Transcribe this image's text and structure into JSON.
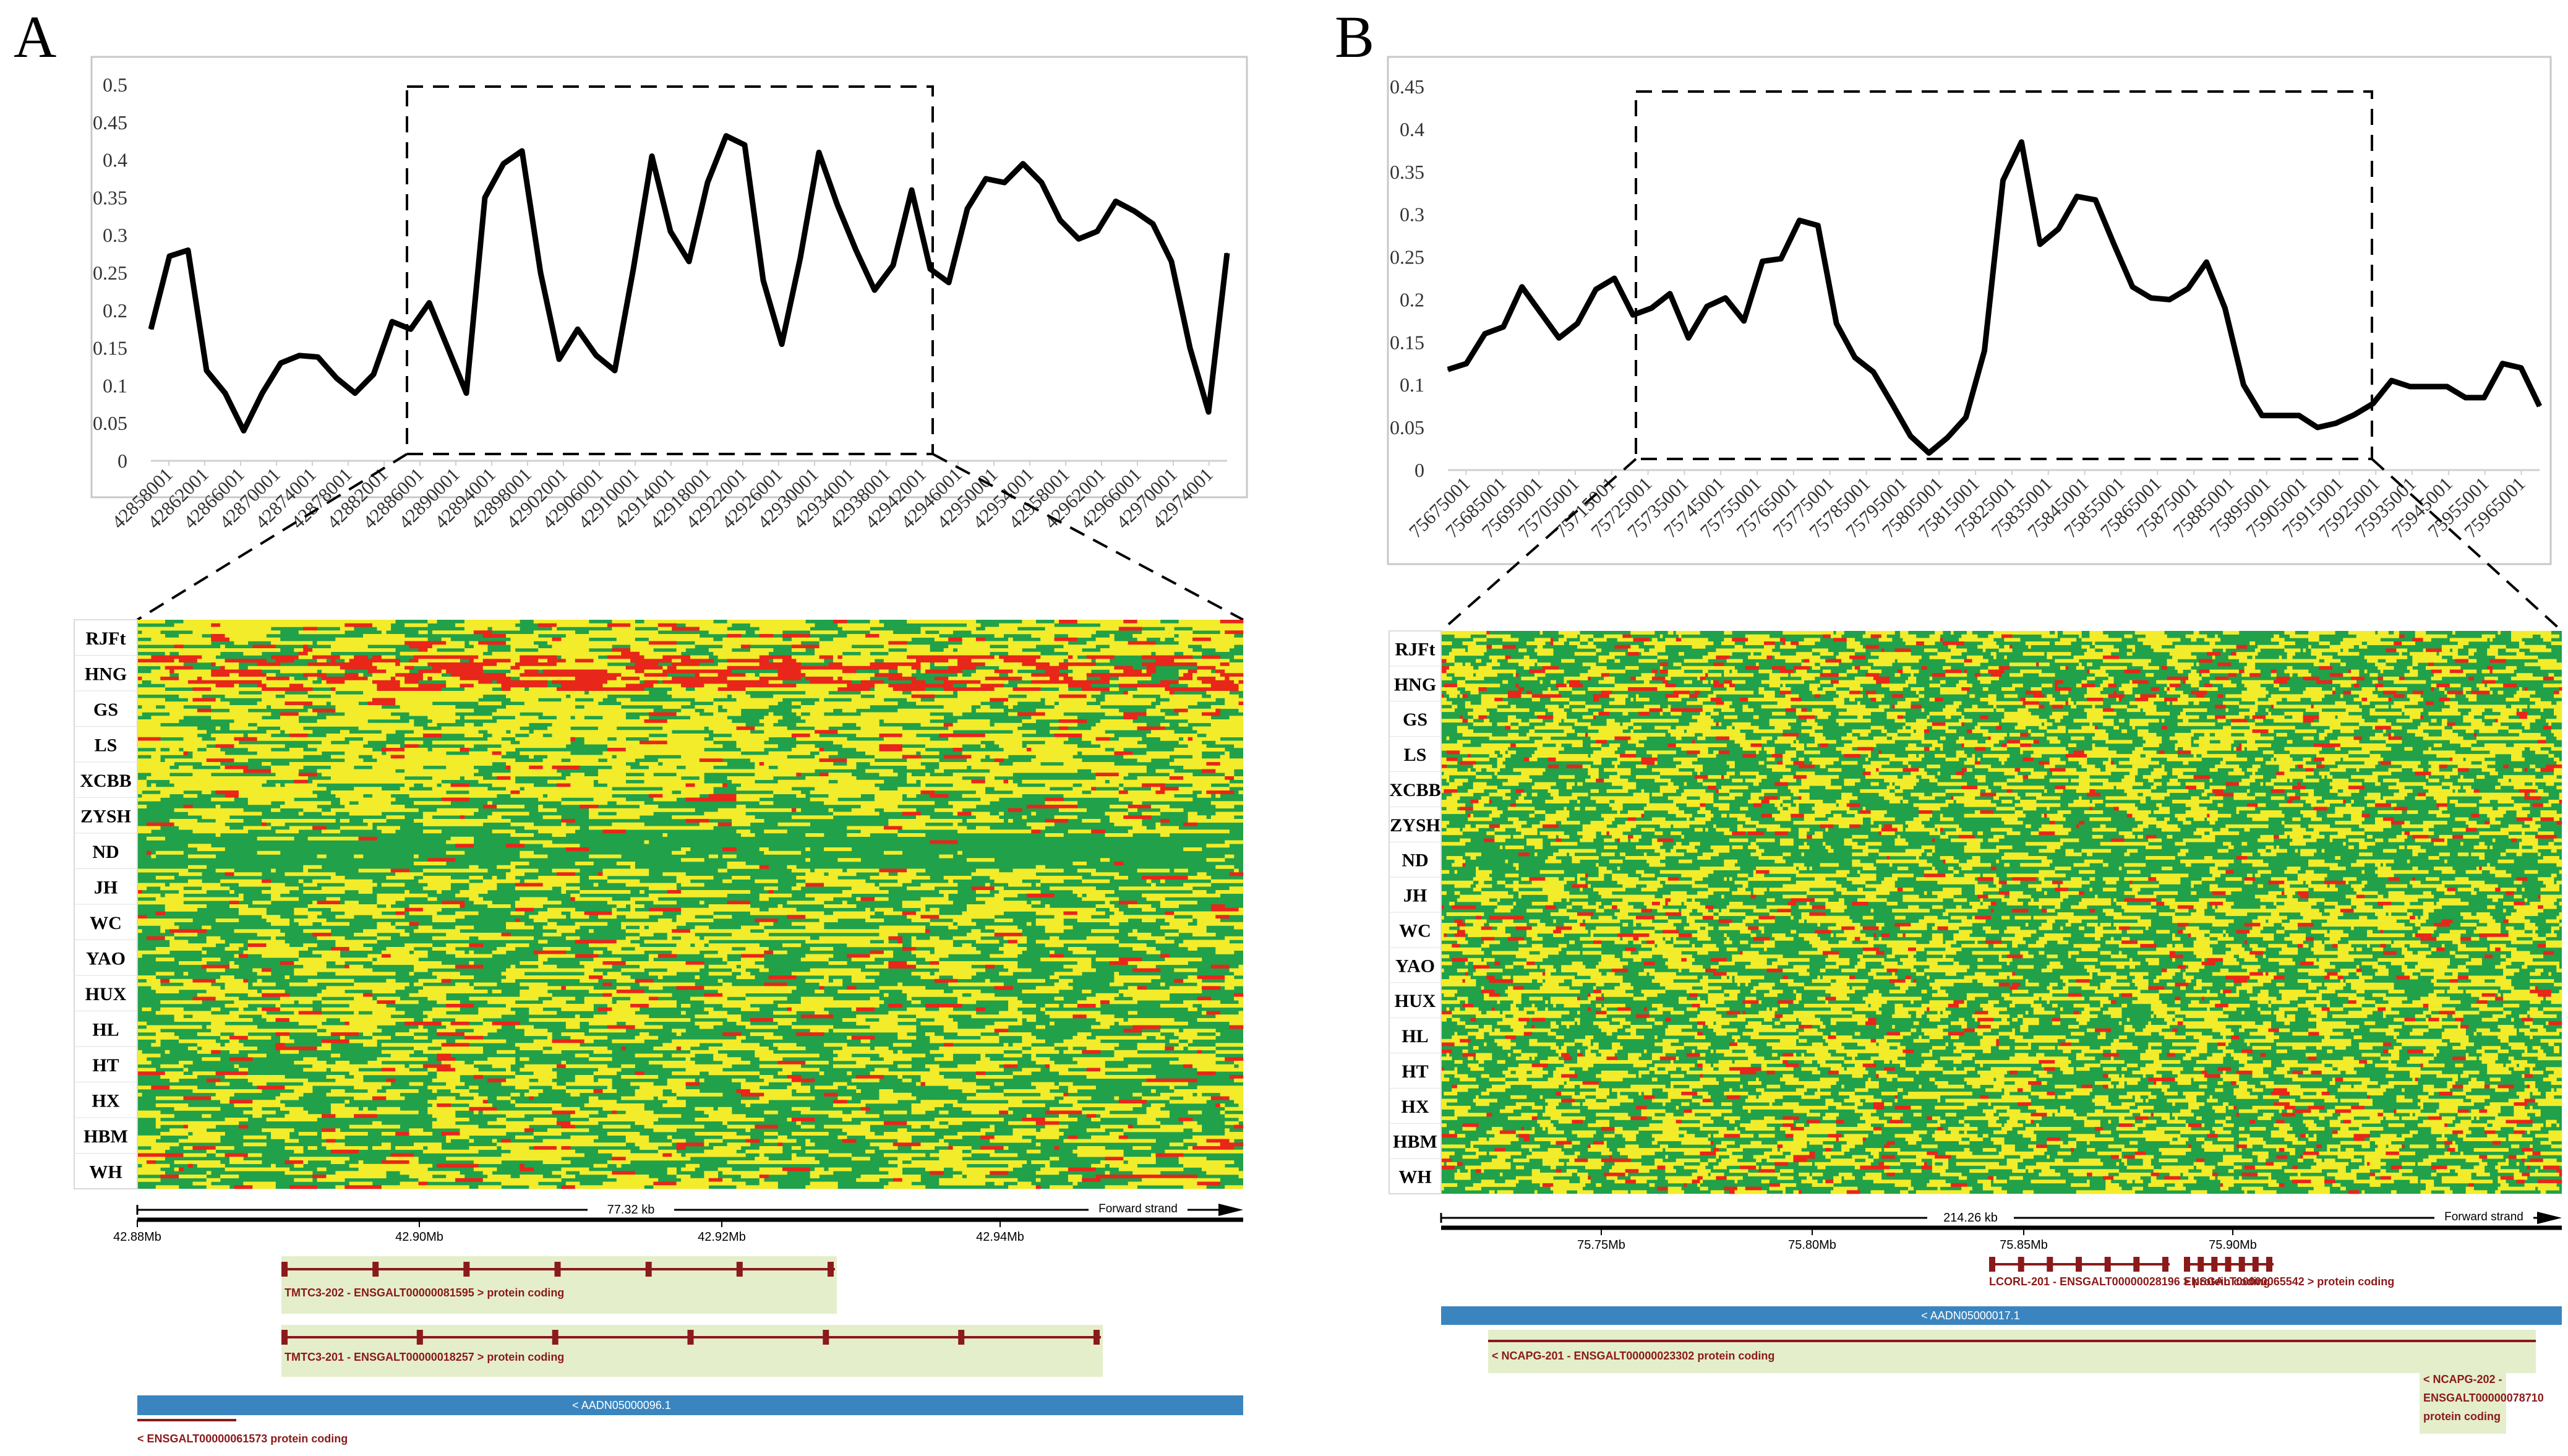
{
  "panels": [
    {
      "id": "A",
      "letter": "A",
      "chart_data": {
        "type": "line",
        "title": "",
        "xlabel": "",
        "ylabel": "",
        "ylim": [
          0,
          0.5
        ],
        "yticks": [
          "0",
          "0.05",
          "0.1",
          "0.15",
          "0.2",
          "0.25",
          "0.3",
          "0.35",
          "0.4",
          "0.45",
          "0.5"
        ],
        "xticks": [
          "42858001",
          "42862001",
          "42866001",
          "42870001",
          "42874001",
          "42878001",
          "42882001",
          "42886001",
          "42890001",
          "42894001",
          "42898001",
          "42902001",
          "42906001",
          "42910001",
          "42914001",
          "42918001",
          "42922001",
          "42926001",
          "42930001",
          "42934001",
          "42938001",
          "42942001",
          "42946001",
          "42950001",
          "42954001",
          "42958001",
          "42962001",
          "42966001",
          "42970001",
          "42974001"
        ],
        "series": [
          {
            "name": "signal",
            "values": [
              0.175,
              0.272,
              0.28,
              0.12,
              0.09,
              0.04,
              0.09,
              0.13,
              0.14,
              0.138,
              0.11,
              0.09,
              0.115,
              0.185,
              0.175,
              0.21,
              0.15,
              0.09,
              0.35,
              0.395,
              0.412,
              0.25,
              0.135,
              0.175,
              0.14,
              0.12,
              0.255,
              0.405,
              0.305,
              0.265,
              0.37,
              0.432,
              0.42,
              0.24,
              0.155,
              0.27,
              0.41,
              0.34,
              0.28,
              0.227,
              0.26,
              0.36,
              0.255,
              0.237,
              0.335,
              0.375,
              0.37,
              0.395,
              0.37,
              0.32,
              0.295,
              0.305,
              0.345,
              0.332,
              0.315,
              0.265,
              0.15,
              0.065,
              0.276
            ]
          }
        ],
        "highlight_range": [
          "42886001",
          "42946001"
        ]
      },
      "heatmap": {
        "populations": [
          "RJFt",
          "HNG",
          "GS",
          "LS",
          "XCBB",
          "ZYSH",
          "ND",
          "JH",
          "WC",
          "YAO",
          "HUX",
          "HL",
          "HT",
          "HX",
          "HBM",
          "WH"
        ],
        "colors": {
          "green": "#21a14a",
          "yellow": "#f2ec2a",
          "red": "#e8261a"
        }
      },
      "track": {
        "length_label": "77.32 kb",
        "strand_label": "Forward strand",
        "ruler_ticks": [
          "42.88Mb",
          "42.90Mb",
          "42.92Mb",
          "42.94Mb"
        ],
        "genes": [
          {
            "label": "TMTC3-202 - ENSGALT00000081595 > protein coding"
          },
          {
            "label": "TMTC3-201 - ENSGALT00000018257 > protein coding"
          }
        ],
        "contig_label": "< AADN05000096.1",
        "bottom_gene_label": "< ENSGALT00000061573 protein coding"
      }
    },
    {
      "id": "B",
      "letter": "B",
      "chart_data": {
        "type": "line",
        "title": "",
        "xlabel": "",
        "ylabel": "",
        "ylim": [
          0,
          0.45
        ],
        "yticks": [
          "0",
          "0.05",
          "0.1",
          "0.15",
          "0.2",
          "0.25",
          "0.3",
          "0.35",
          "0.4",
          "0.45"
        ],
        "xticks": [
          "75675001",
          "75685001",
          "75695001",
          "75705001",
          "75715001",
          "75725001",
          "75735001",
          "75745001",
          "75755001",
          "75765001",
          "75775001",
          "75785001",
          "75795001",
          "75805001",
          "75815001",
          "75825001",
          "75835001",
          "75845001",
          "75855001",
          "75865001",
          "75875001",
          "75885001",
          "75895001",
          "75905001",
          "75915001",
          "75925001",
          "75935001",
          "75945001",
          "75955001",
          "75965001"
        ],
        "series": [
          {
            "name": "signal",
            "values": [
              0.118,
              0.125,
              0.16,
              0.168,
              0.215,
              0.185,
              0.155,
              0.172,
              0.212,
              0.225,
              0.182,
              0.19,
              0.207,
              0.155,
              0.192,
              0.202,
              0.175,
              0.245,
              0.248,
              0.293,
              0.287,
              0.172,
              0.132,
              0.115,
              0.078,
              0.04,
              0.02,
              0.038,
              0.062,
              0.14,
              0.34,
              0.385,
              0.265,
              0.283,
              0.321,
              0.317,
              0.265,
              0.215,
              0.202,
              0.2,
              0.213,
              0.244,
              0.19,
              0.1,
              0.064,
              0.064,
              0.064,
              0.05,
              0.055,
              0.065,
              0.078,
              0.105,
              0.098,
              0.098,
              0.098,
              0.085,
              0.085,
              0.125,
              0.12,
              0.075
            ]
          }
        ],
        "highlight_range": [
          "75725001",
          "75915001"
        ]
      },
      "heatmap": {
        "populations": [
          "RJFt",
          "HNG",
          "GS",
          "LS",
          "XCBB",
          "ZYSH",
          "ND",
          "JH",
          "WC",
          "YAO",
          "HUX",
          "HL",
          "HT",
          "HX",
          "HBM",
          "WH"
        ],
        "colors": {
          "green": "#21a14a",
          "yellow": "#f2ec2a",
          "red": "#e8261a"
        }
      },
      "track": {
        "length_label": "214.26 kb",
        "strand_label": "Forward strand",
        "ruler_ticks": [
          "75.75Mb",
          "75.80Mb",
          "75.85Mb",
          "75.90Mb"
        ],
        "genes": [
          {
            "label": "LCORL-201 - ENSGALT00000028196 > protein coding"
          },
          {
            "label": "ENSGALT00000065542 > protein coding"
          }
        ],
        "contig_label": "< AADN05000017.1",
        "bottom_gene_label": "< NCAPG-201 - ENSGALT00000023302 protein coding",
        "extra_gene_label_lines": [
          "< NCAPG-202 -",
          "ENSGALT00000078710",
          "protein coding"
        ]
      }
    }
  ]
}
